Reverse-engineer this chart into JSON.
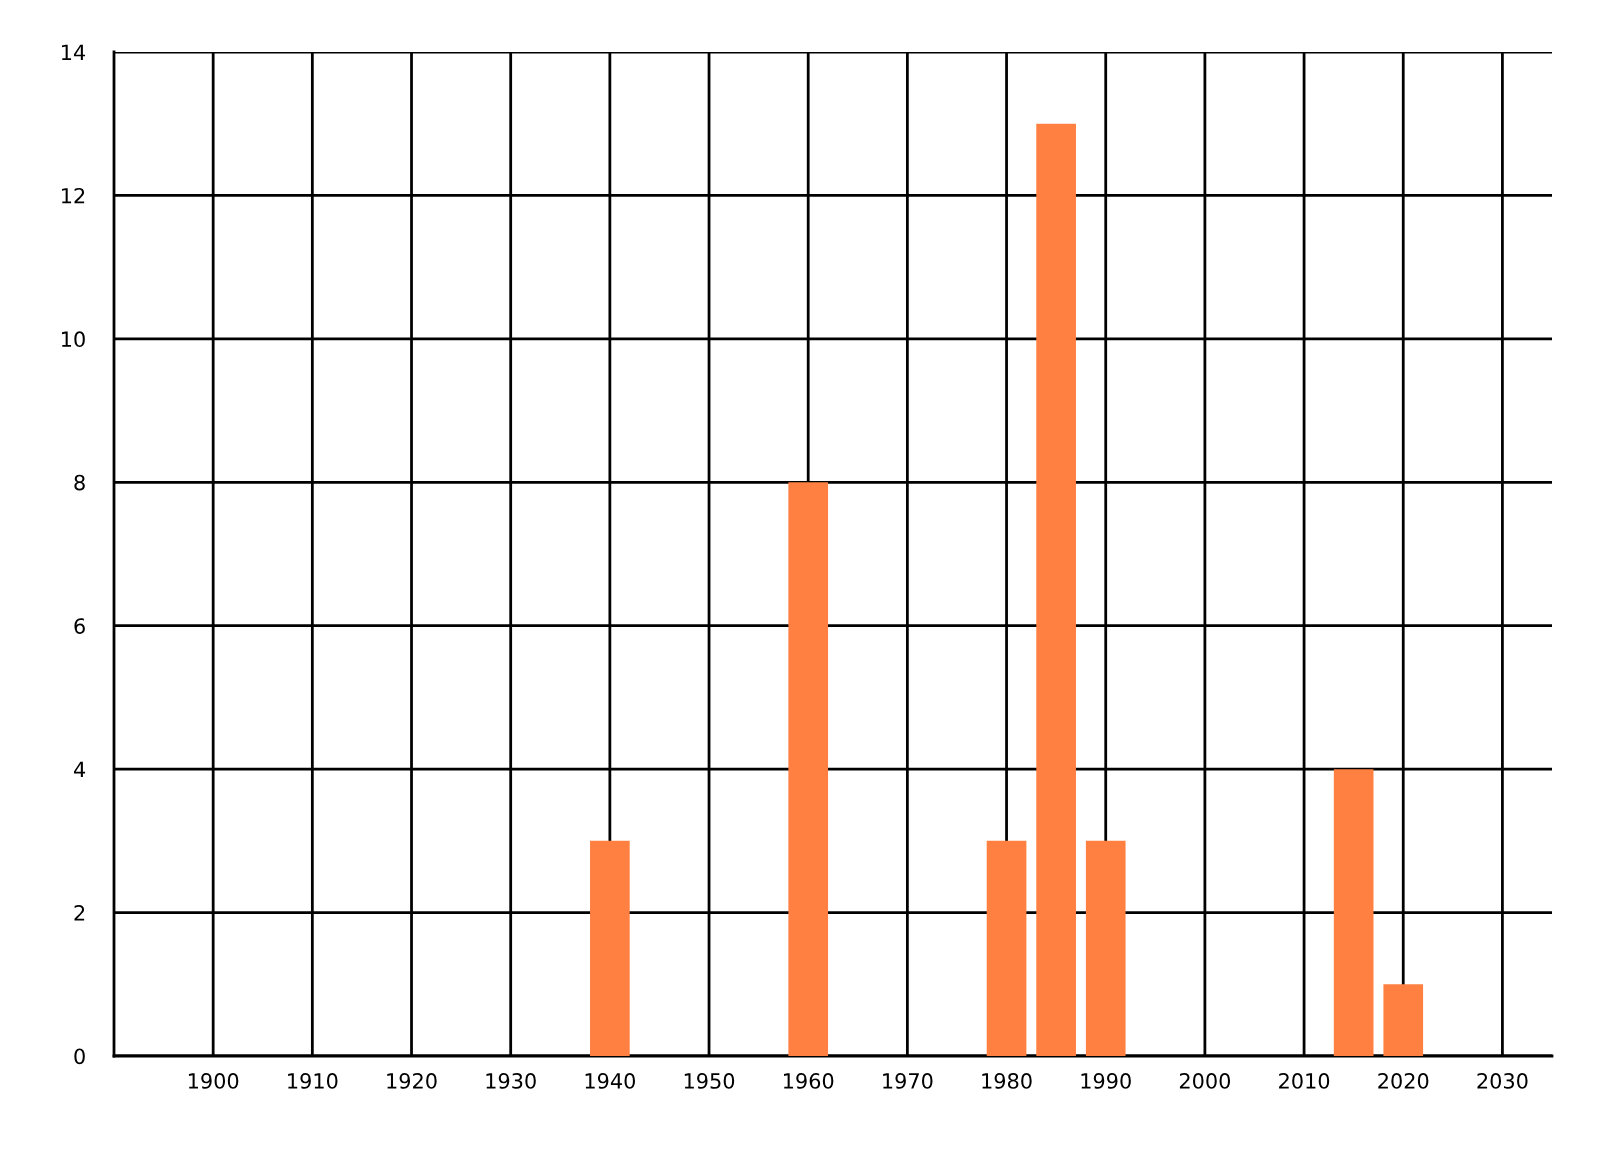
{
  "chart_data": {
    "type": "bar",
    "x": [
      1940,
      1960,
      1980,
      1985,
      1990,
      2015,
      2020
    ],
    "values": [
      3,
      8,
      3,
      13,
      3,
      4,
      1
    ],
    "color": "#ff8040",
    "xlim": [
      1890,
      2035
    ],
    "xticks": [
      1900,
      1910,
      1920,
      1930,
      1940,
      1950,
      1960,
      1970,
      1980,
      1990,
      2000,
      2010,
      2020,
      2030
    ],
    "ylim": [
      0,
      14
    ],
    "yticks": [
      0,
      2,
      4,
      6,
      8,
      10,
      12,
      14
    ],
    "grid": true
  }
}
